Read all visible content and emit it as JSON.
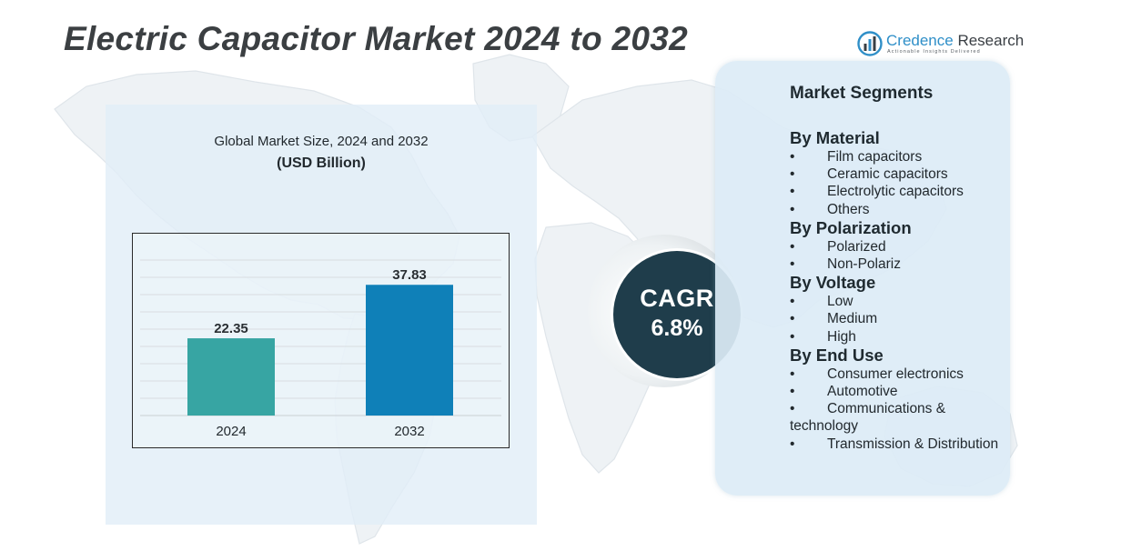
{
  "title": "Electric Capacitor Market 2024 to 2032",
  "brand": {
    "name_part1": "Credence",
    "name_part2": " Research",
    "tagline": "Actionable Insights Delivered",
    "colors": {
      "blue": "#2f8fc8",
      "dark": "#3a3f44"
    }
  },
  "chart_data": {
    "type": "bar",
    "title": "Global Market Size, 2024 and 2032",
    "subtitle": "(USD Billion)",
    "categories": [
      "2024",
      "2032"
    ],
    "values": [
      22.35,
      37.83
    ],
    "data_labels": [
      "22.35",
      "37.83"
    ],
    "bar_colors": [
      "#37a5a3",
      "#0f80b8"
    ],
    "ylim": [
      0,
      50
    ],
    "grid": true,
    "xlabel": "",
    "ylabel": ""
  },
  "cagr": {
    "label": "CAGR",
    "value": "6.8%"
  },
  "segments": {
    "title": "Market Segments",
    "bullet": "•",
    "groups": [
      {
        "heading": "By Material",
        "items": [
          "Film capacitors",
          "Ceramic capacitors",
          "Electrolytic capacitors",
          "Others"
        ]
      },
      {
        "heading": "By Polarization",
        "items": [
          "Polarized",
          "Non-Polariz"
        ]
      },
      {
        "heading": "By Voltage",
        "items": [
          "Low",
          "Medium",
          "High"
        ]
      },
      {
        "heading": "By End Use",
        "items": [
          "Consumer electronics",
          "Automotive",
          "Communications & technology",
          "Transmission & Distribution"
        ]
      }
    ]
  }
}
